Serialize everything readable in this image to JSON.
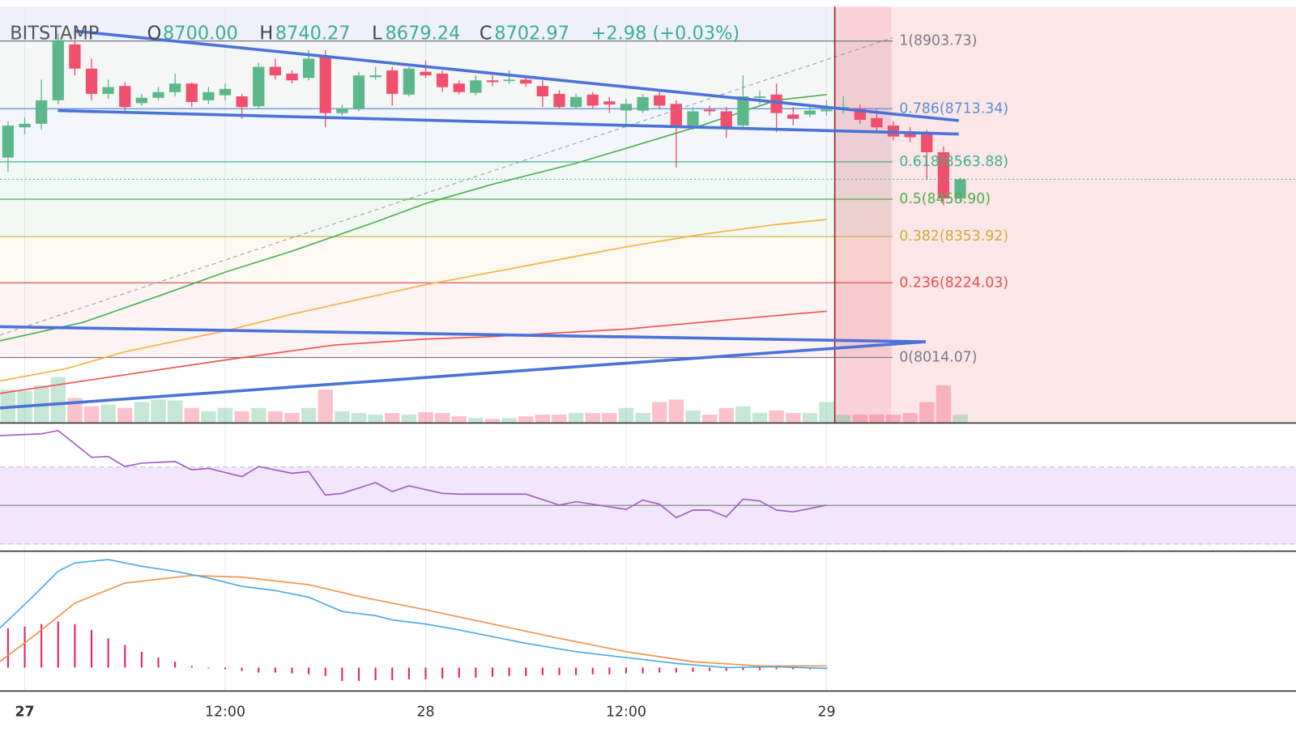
{
  "header": {
    "exchange": "BITSTAMP",
    "open_label": "O",
    "open": "8700.00",
    "high_label": "H",
    "high": "8740.27",
    "low_label": "L",
    "low": "8679.24",
    "close_label": "C",
    "close": "8702.97",
    "change": "+2.98 (+0.03%)"
  },
  "chart_data": [
    {
      "type": "candlestick",
      "x": [
        -1,
        0,
        1,
        2,
        3,
        4,
        5,
        6,
        7,
        8,
        9,
        10,
        11,
        12,
        13,
        14,
        15,
        16,
        17,
        18,
        19,
        20,
        21,
        22,
        23,
        24,
        25,
        26,
        27,
        28,
        29,
        30,
        31,
        32,
        33,
        34,
        35,
        36,
        37,
        38,
        39,
        40,
        41,
        42,
        43,
        44,
        45,
        46,
        47,
        48,
        49,
        50,
        51,
        52,
        53,
        54,
        55,
        56
      ],
      "open": [
        8576,
        8661,
        8671,
        8737,
        8894,
        8826,
        8755,
        8777,
        8729,
        8744,
        8760,
        8784,
        8737,
        8751,
        8748,
        8720,
        8831,
        8812,
        8800,
        8859,
        8701,
        8713,
        8802,
        8821,
        8753,
        8817,
        8812,
        8784,
        8758,
        8793,
        8791,
        8795,
        8777,
        8755,
        8718,
        8753,
        8734,
        8708,
        8708,
        8751,
        8727,
        8666,
        8711,
        8706,
        8666,
        8744,
        8753,
        8697,
        8697,
        8706,
        8711,
        8715,
        8687,
        8666,
        8642,
        8642,
        8591,
        8461
      ],
      "high": [
        8678,
        8689,
        8795,
        8925,
        8906,
        8854,
        8795,
        8788,
        8755,
        8774,
        8812,
        8788,
        8774,
        8784,
        8755,
        8842,
        8854,
        8821,
        8878,
        8878,
        8725,
        8817,
        8831,
        8831,
        8831,
        8849,
        8821,
        8793,
        8807,
        8807,
        8821,
        8807,
        8793,
        8765,
        8755,
        8760,
        8746,
        8741,
        8755,
        8769,
        8737,
        8718,
        8722,
        8718,
        8807,
        8765,
        8784,
        8718,
        8722,
        8737,
        8748,
        8725,
        8713,
        8678,
        8661,
        8654,
        8607,
        8520
      ],
      "low": [
        8536,
        8642,
        8654,
        8725,
        8807,
        8737,
        8741,
        8701,
        8722,
        8737,
        8748,
        8718,
        8727,
        8737,
        8685,
        8713,
        8795,
        8784,
        8793,
        8661,
        8694,
        8706,
        8795,
        8722,
        8748,
        8800,
        8760,
        8753,
        8751,
        8777,
        8784,
        8774,
        8718,
        8713,
        8713,
        8713,
        8701,
        8666,
        8701,
        8713,
        8548,
        8654,
        8694,
        8631,
        8654,
        8725,
        8647,
        8666,
        8689,
        8694,
        8699,
        8671,
        8647,
        8624,
        8619,
        8513,
        8442,
        8454
      ],
      "close": [
        8666,
        8671,
        8737,
        8906,
        8826,
        8755,
        8774,
        8718,
        8744,
        8760,
        8784,
        8732,
        8760,
        8769,
        8718,
        8831,
        8807,
        8793,
        8854,
        8701,
        8713,
        8807,
        8807,
        8755,
        8826,
        8807,
        8774,
        8760,
        8793,
        8788,
        8795,
        8784,
        8748,
        8718,
        8746,
        8722,
        8725,
        8727,
        8746,
        8722,
        8666,
        8706,
        8706,
        8659,
        8748,
        8748,
        8701,
        8685,
        8708,
        8711,
        8718,
        8682,
        8661,
        8635,
        8633,
        8591,
        8461,
        8515
      ],
      "volume": [
        40,
        38,
        45,
        55,
        30,
        20,
        22,
        18,
        25,
        28,
        27,
        18,
        14,
        18,
        14,
        18,
        14,
        12,
        18,
        40,
        14,
        12,
        10,
        12,
        10,
        13,
        12,
        8,
        6,
        5,
        6,
        8,
        10,
        10,
        12,
        12,
        12,
        18,
        12,
        25,
        28,
        15,
        10,
        18,
        20,
        12,
        15,
        12,
        12,
        25,
        10,
        10,
        10,
        10,
        12,
        25,
        45,
        10
      ],
      "volume_ylim": [
        0,
        120
      ],
      "up_color": "#5cb88a",
      "down_color": "#f0506e",
      "xlim": [
        -1.48,
        76.1
      ],
      "ylim": [
        7830,
        9000
      ],
      "xticks": [
        {
          "value": 0,
          "label": "27"
        },
        {
          "value": 12,
          "label": "12:00"
        },
        {
          "value": 24,
          "label": "28"
        },
        {
          "value": 36,
          "label": "12:00"
        },
        {
          "value": 48,
          "label": "29"
        }
      ],
      "fib_levels": [
        {
          "value": 8903.73,
          "label": "1(8903.73)",
          "color": "#787b86"
        },
        {
          "value": 8713.34,
          "label": "0.786(8713.34)",
          "color": "#5a8fd6"
        },
        {
          "value": 8563.88,
          "label": "0.618(8563.88)",
          "color": "#3fb18f"
        },
        {
          "value": 8458.9,
          "label": "0.5(8458.90)",
          "color": "#4caf50"
        },
        {
          "value": 8353.92,
          "label": "0.382(8353.92)",
          "color": "#c2b13a"
        },
        {
          "value": 8224.03,
          "label": "0.236(8224.03)",
          "color": "#e05252"
        },
        {
          "value": 8014.07,
          "label": "0(8014.07)",
          "color": "#787b86"
        }
      ],
      "moving_averages": [
        {
          "color": "#4caf50",
          "x": [
            -1.5,
            3.5,
            8.5,
            12,
            16,
            21,
            24,
            28,
            33,
            36,
            40.5,
            45,
            48
          ],
          "values": [
            8061,
            8113,
            8195,
            8254,
            8313,
            8395,
            8447,
            8501,
            8560,
            8602,
            8666,
            8737,
            8753
          ]
        },
        {
          "color": "#f7b142",
          "x": [
            -1.5,
            2.5,
            6,
            12,
            16,
            24,
            28,
            36,
            40.5,
            45,
            48
          ],
          "values": [
            7948,
            7983,
            8030,
            8089,
            8136,
            8219,
            8254,
            8325,
            8360,
            8388,
            8402
          ]
        },
        {
          "color": "#ef5350",
          "x": [
            -1.5,
            3.5,
            8.5,
            12,
            18.5,
            24,
            28,
            36,
            40.5,
            45,
            48
          ],
          "values": [
            7913,
            7948,
            7983,
            8007,
            8049,
            8066,
            8073,
            8094,
            8113,
            8132,
            8144
          ]
        }
      ]
    },
    {
      "type": "rsi",
      "color": "#a05cc6",
      "xlim": [
        -1.48,
        76.1
      ],
      "ylim": [
        26.3,
        92.8
      ],
      "levels": [
        30,
        50,
        70
      ],
      "x": [
        -1.5,
        1,
        2,
        4,
        5,
        6,
        7,
        9,
        10,
        11,
        13,
        14,
        16,
        17,
        18,
        19,
        21,
        22,
        23,
        25,
        26,
        30,
        32,
        33,
        36,
        37,
        38,
        39,
        40,
        41,
        42,
        43,
        44,
        45,
        46,
        48
      ],
      "values": [
        86.3,
        87.2,
        88.9,
        75,
        75.4,
        70.2,
        72,
        72.8,
        68.5,
        69.3,
        65,
        70.2,
        66.7,
        67.6,
        55.4,
        56.3,
        61.9,
        57.2,
        60.2,
        56.3,
        55.9,
        55.9,
        50.2,
        52,
        48,
        52.8,
        50.7,
        43.7,
        47.6,
        47.6,
        44.1,
        53.3,
        52.4,
        47.6,
        46.7,
        50.2
      ]
    },
    {
      "type": "macd",
      "xlim": [
        -1.48,
        76.1
      ],
      "ylim": [
        -14,
        69.5
      ],
      "macd": {
        "color": "#4aa8e8",
        "x": [
          -1.5,
          0.5,
          2,
          3,
          5,
          7,
          9,
          11,
          13,
          15,
          17,
          19,
          21,
          22,
          24,
          26,
          30,
          33,
          36,
          39,
          42,
          45,
          48
        ],
        "values": [
          23.5,
          42.5,
          57.5,
          62.5,
          64.5,
          60.5,
          57.5,
          53.5,
          48.5,
          46,
          42,
          33.5,
          31,
          28.5,
          26,
          22.5,
          14.5,
          9.5,
          6,
          2.5,
          0,
          0.5,
          -0.5
        ]
      },
      "signal": {
        "color": "#f5914a",
        "x": [
          -1.5,
          0.5,
          3,
          6,
          10,
          13,
          17,
          20,
          24,
          28,
          32,
          36,
          40,
          44,
          48
        ],
        "values": [
          3.5,
          18.5,
          38.5,
          50.5,
          55,
          54,
          49.5,
          42.5,
          34.5,
          26,
          17.5,
          9.5,
          3.5,
          1,
          1
        ]
      },
      "histogram": {
        "color": "#e91e63",
        "x": [
          -1,
          0,
          1,
          2,
          3,
          4,
          5,
          6,
          7,
          8,
          9,
          10,
          11,
          12,
          13,
          14,
          15,
          16,
          17,
          18,
          19,
          20,
          21,
          22,
          23,
          24,
          25,
          26,
          27,
          28,
          29,
          30,
          31,
          32,
          33,
          34,
          35,
          36,
          37,
          38,
          39,
          40,
          41,
          42,
          43,
          44,
          45,
          46,
          47,
          48,
          49,
          50,
          51,
          52,
          53,
          54,
          55,
          56
        ],
        "values": [
          23.5,
          24.5,
          26,
          27.5,
          26,
          22.5,
          17.5,
          13.5,
          9.5,
          6,
          3.5,
          1,
          0,
          -1,
          -2,
          -3,
          -3,
          -3.5,
          -4,
          -5,
          -8,
          -8,
          -7.5,
          -7.5,
          -7,
          -7,
          -6.5,
          -6,
          -6,
          -5.5,
          -5,
          -5,
          -4.5,
          -4.5,
          -4.5,
          -4,
          -4,
          -3.5,
          -3.5,
          -3,
          -3,
          -2.5,
          -2,
          -2,
          -1.5,
          -1.5,
          -1,
          -1,
          -1,
          -0.5,
          null,
          null,
          null,
          null,
          null,
          null,
          null,
          null
        ]
      }
    }
  ]
}
